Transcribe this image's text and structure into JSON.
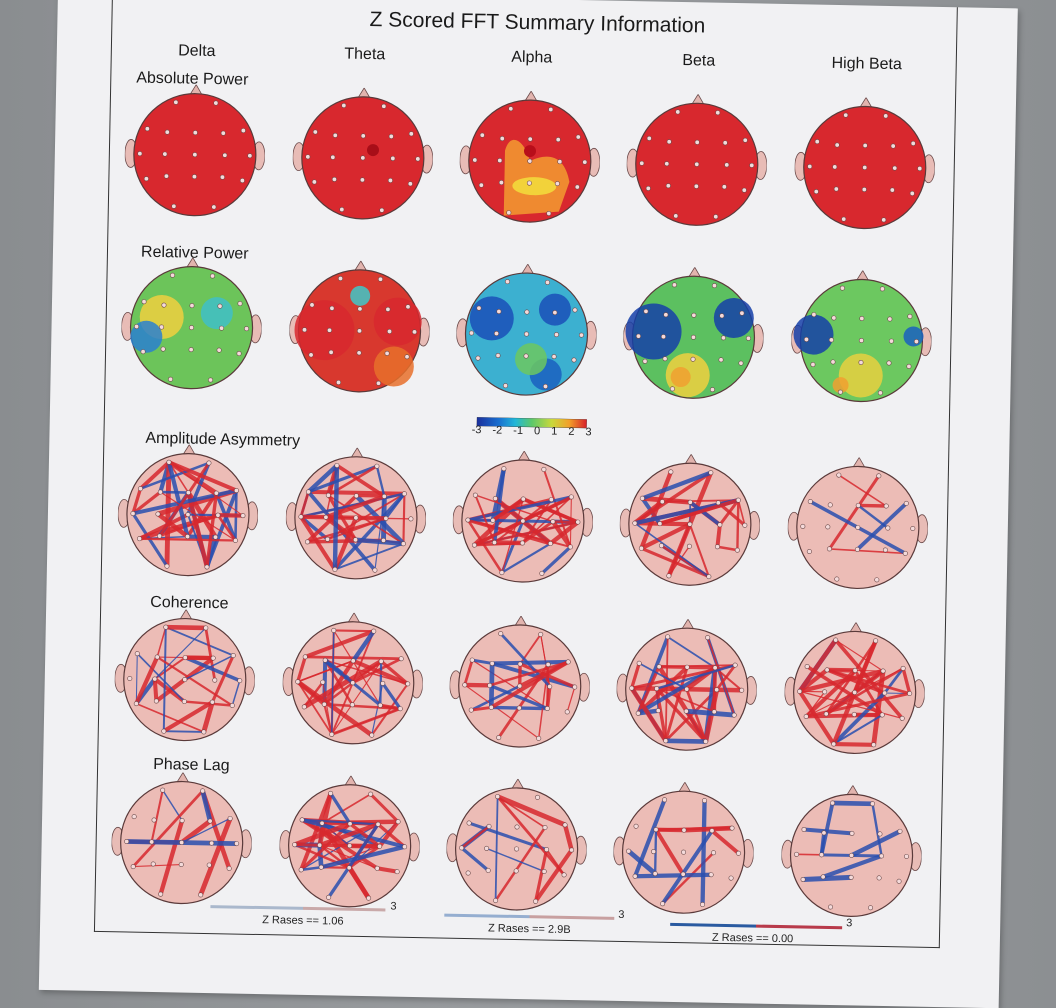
{
  "title": "Z Scored FFT Summary Information",
  "bands": [
    "Delta",
    "Theta",
    "Alpha",
    "Beta",
    "High Beta"
  ],
  "rows": [
    {
      "label": "Absolute Power",
      "type": "topomap"
    },
    {
      "label": "Relative Power",
      "type": "topomap"
    },
    {
      "label": "Amplitude Asymmetry",
      "type": "connectivity"
    },
    {
      "label": "Coherence",
      "type": "connectivity"
    },
    {
      "label": "Phase Lag",
      "type": "connectivity"
    }
  ],
  "colorbar": {
    "ticks": [
      "-3",
      "-2",
      "-1",
      "0",
      "1",
      "2",
      "3"
    ],
    "colors": [
      "#1b2f9c",
      "#1a6fd0",
      "#21b7d8",
      "#5cc86a",
      "#c8d83c",
      "#f2a02a",
      "#d8202a"
    ]
  },
  "z_legends": [
    {
      "label": "Z Rases == 1.06",
      "max": "3"
    },
    {
      "label": "Z Rases == 2.9B",
      "max": "3"
    },
    {
      "label": "Z Rases == 0.00",
      "max": "3"
    }
  ],
  "colors": {
    "high": "#d8282e",
    "low": "#2a4fb0",
    "head_conn": "#ecbcb6",
    "head_outline": "#5a3a3a"
  },
  "chart_data": {
    "type": "heatmap",
    "title": "Z Scored FFT Summary Information",
    "columns": [
      "Delta",
      "Theta",
      "Alpha",
      "Beta",
      "High Beta"
    ],
    "rows": [
      "Absolute Power",
      "Relative Power",
      "Amplitude Asymmetry",
      "Coherence",
      "Phase Lag"
    ],
    "colorbar_range": [
      -3,
      3
    ],
    "colorbar_ticks": [
      -3,
      -2,
      -1,
      0,
      1,
      2,
      3
    ],
    "absolute_power_summary": {
      "Delta": "+3 all sites",
      "Theta": "+3 all sites",
      "Alpha": "+3 frontal, +1 to +2 posterior",
      "Beta": "+3 all sites",
      "High Beta": "+3 all sites"
    },
    "relative_power_summary": {
      "Delta": "mostly 0 to +1, -2 left temporal",
      "Theta": "+3 bilateral temporal",
      "Alpha": "-1 to -2 widespread",
      "Beta": "-3 bilateral frontal-temporal, +1 to +2 posterior",
      "High Beta": "-3 left temporal, +1 posterior"
    },
    "connectivity_legend": [
      {
        "label": "Z Rases == 1.06",
        "max": 3
      },
      {
        "label": "Z Rases == 2.9B",
        "max": 3
      },
      {
        "label": "Z Rases == 0.00",
        "max": 3
      }
    ]
  }
}
